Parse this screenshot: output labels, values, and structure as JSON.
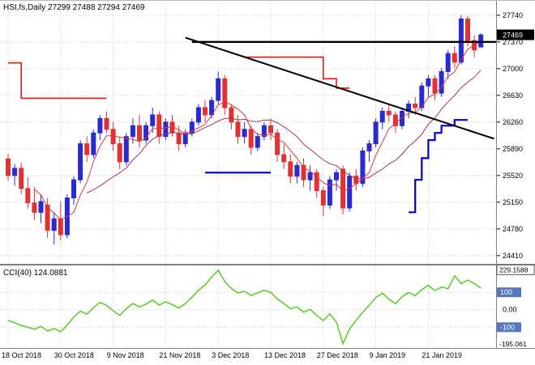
{
  "header": {
    "title_text": "HSI,fs,Daily 27299 27488 27294 27469",
    "symbol": "HSI,fs",
    "timeframe": "Daily",
    "ohlc": {
      "open": "27299",
      "high": "27488",
      "low": "27294",
      "close": "27469"
    }
  },
  "chart_data": {
    "type": "candlestick",
    "title": "HSI,fs,Daily",
    "ylim": [
      24330,
      27940
    ],
    "cci_ylim": [
      -210,
      240
    ],
    "grid": true,
    "price_ticks": [
      27740,
      27370,
      27000,
      26630,
      26260,
      25890,
      25520,
      25150,
      24780,
      24410
    ],
    "date_ticks": [
      {
        "index": 0,
        "label": "18 Oct 2018"
      },
      {
        "index": 8,
        "label": "30 Oct 2018"
      },
      {
        "index": 16,
        "label": "9 Nov 2018"
      },
      {
        "index": 24,
        "label": "21 Nov 2018"
      },
      {
        "index": 32,
        "label": "3 Dec 2018"
      },
      {
        "index": 40,
        "label": "13 Dec 2018"
      },
      {
        "index": 48,
        "label": "27 Dec 2018"
      },
      {
        "index": 56,
        "label": "9 Jan 2019"
      },
      {
        "index": 64,
        "label": "21 Jan 2019"
      }
    ],
    "candles": [
      [
        25750,
        25820,
        25450,
        25520
      ],
      [
        25520,
        25680,
        25380,
        25620
      ],
      [
        25620,
        25700,
        25260,
        25340
      ],
      [
        25340,
        25500,
        25060,
        25140
      ],
      [
        25140,
        25360,
        24900,
        25010
      ],
      [
        25010,
        25260,
        24860,
        25160
      ],
      [
        25110,
        25210,
        24660,
        24760
      ],
      [
        24760,
        25010,
        24560,
        24920
      ],
      [
        24920,
        25160,
        24620,
        24700
      ],
      [
        24700,
        25260,
        24650,
        25210
      ],
      [
        25210,
        25510,
        25110,
        25460
      ],
      [
        25460,
        26010,
        25410,
        25960
      ],
      [
        25960,
        26060,
        25710,
        25810
      ],
      [
        25810,
        26160,
        25760,
        26110
      ],
      [
        26110,
        26360,
        26010,
        26310
      ],
      [
        26310,
        26410,
        26110,
        26160
      ],
      [
        26160,
        26260,
        25860,
        25960
      ],
      [
        25960,
        26060,
        25610,
        25710
      ],
      [
        25710,
        26110,
        25660,
        26060
      ],
      [
        26060,
        26310,
        25960,
        26210
      ],
      [
        26210,
        26360,
        25910,
        26010
      ],
      [
        26010,
        26260,
        25960,
        26210
      ],
      [
        26210,
        26460,
        26110,
        26360
      ],
      [
        26360,
        26410,
        25960,
        26060
      ],
      [
        26060,
        26310,
        26010,
        26260
      ],
      [
        26260,
        26360,
        26060,
        26110
      ],
      [
        26110,
        26210,
        25860,
        25960
      ],
      [
        25960,
        26160,
        25910,
        26110
      ],
      [
        26110,
        26310,
        26060,
        26260
      ],
      [
        26260,
        26510,
        26210,
        26460
      ],
      [
        26460,
        26560,
        26260,
        26360
      ],
      [
        26360,
        26610,
        26310,
        26560
      ],
      [
        26560,
        26960,
        26510,
        26860
      ],
      [
        26860,
        26910,
        26360,
        26460
      ],
      [
        26460,
        26510,
        26160,
        26260
      ],
      [
        26260,
        26360,
        25960,
        26060
      ],
      [
        26060,
        26260,
        25960,
        26160
      ],
      [
        26160,
        26210,
        25810,
        25910
      ],
      [
        25910,
        26110,
        25860,
        26060
      ],
      [
        26060,
        26260,
        26010,
        26210
      ],
      [
        26210,
        26310,
        26010,
        26110
      ],
      [
        26110,
        26160,
        25710,
        25810
      ],
      [
        25810,
        25960,
        25610,
        25710
      ],
      [
        25710,
        25810,
        25410,
        25510
      ],
      [
        25510,
        25710,
        25410,
        25660
      ],
      [
        25660,
        25760,
        25360,
        25460
      ],
      [
        25460,
        25660,
        25310,
        25560
      ],
      [
        25560,
        25610,
        25210,
        25310
      ],
      [
        25310,
        25360,
        24960,
        25110
      ],
      [
        25110,
        25510,
        25060,
        25460
      ],
      [
        25460,
        25610,
        25310,
        25560
      ],
      [
        25610,
        25660,
        24980,
        25070
      ],
      [
        25070,
        25560,
        25020,
        25510
      ],
      [
        25510,
        25610,
        25310,
        25410
      ],
      [
        25410,
        25910,
        25360,
        25860
      ],
      [
        25860,
        26010,
        25710,
        25960
      ],
      [
        25960,
        26310,
        25910,
        26260
      ],
      [
        26260,
        26460,
        26160,
        26410
      ],
      [
        26410,
        26510,
        26260,
        26360
      ],
      [
        26360,
        26410,
        26110,
        26210
      ],
      [
        26210,
        26460,
        26160,
        26410
      ],
      [
        26410,
        26560,
        26310,
        26510
      ],
      [
        26510,
        26610,
        26360,
        26460
      ],
      [
        26460,
        26810,
        26410,
        26760
      ],
      [
        26760,
        26910,
        26610,
        26860
      ],
      [
        26860,
        26910,
        26560,
        26660
      ],
      [
        26660,
        27010,
        26610,
        26960
      ],
      [
        26960,
        27260,
        26860,
        27210
      ],
      [
        27210,
        27310,
        27010,
        27090
      ],
      [
        27090,
        27740,
        27060,
        27690
      ],
      [
        27690,
        27730,
        27310,
        27390
      ],
      [
        27390,
        27460,
        27160,
        27260
      ],
      [
        27299,
        27488,
        27294,
        27469
      ]
    ],
    "current": {
      "open": 27299,
      "high": 27488,
      "low": 27294,
      "close": 27469
    },
    "price_line": {
      "value": 27469,
      "label": "27469"
    },
    "hline": {
      "value": 27370,
      "from_index": 28
    },
    "trendline": {
      "from": [
        27,
        27430
      ],
      "to": [
        74,
        26030
      ]
    },
    "ma": {
      "fast_period": 5,
      "slow_period": 13,
      "fast_color": "#e03535",
      "slow_color": "#aa3355"
    },
    "step_lines": {
      "red": [
        [
          [
            0,
            27080
          ],
          [
            2,
            27080
          ],
          [
            2,
            26590
          ],
          [
            15,
            26590
          ]
        ],
        [
          [
            36,
            27160
          ],
          [
            48,
            27160
          ],
          [
            48,
            26860
          ],
          [
            50,
            26860
          ],
          [
            50,
            26730
          ],
          [
            52,
            26730
          ]
        ]
      ],
      "blue": [
        [
          [
            30,
            25560
          ],
          [
            40,
            25560
          ]
        ],
        [
          [
            61,
            25010
          ],
          [
            62,
            25010
          ],
          [
            62,
            25460
          ],
          [
            63,
            25460
          ],
          [
            63,
            25760
          ],
          [
            64,
            25760
          ],
          [
            64,
            26010
          ],
          [
            65,
            26010
          ],
          [
            65,
            26110
          ],
          [
            66,
            26110
          ],
          [
            66,
            26210
          ],
          [
            68,
            26210
          ],
          [
            68,
            26290
          ],
          [
            70,
            26290
          ]
        ]
      ]
    },
    "indicator": {
      "name": "CCI(40)",
      "value": "124.0881",
      "name_label": "CCI(40) 124.0881",
      "scale_max": "229.1588",
      "scale_max_value": 229.1588,
      "scale_min": "-195.061",
      "scale_min_value": -195.061,
      "levels": [
        100,
        0,
        -100
      ],
      "level_ticks": [
        {
          "label": "100",
          "value": 100,
          "boxed": true
        },
        {
          "label": "0.00",
          "value": 0,
          "boxed": false
        },
        {
          "label": "-100",
          "value": -100,
          "boxed": true
        }
      ],
      "values": [
        -60,
        -75,
        -90,
        -100,
        -112,
        -95,
        -122,
        -108,
        -126,
        -88,
        -42,
        -8,
        -25,
        12,
        42,
        25,
        -6,
        -32,
        6,
        36,
        16,
        32,
        56,
        26,
        46,
        30,
        10,
        36,
        72,
        112,
        142,
        188,
        226,
        162,
        122,
        96,
        106,
        82,
        96,
        112,
        100,
        62,
        36,
        6,
        16,
        -14,
        2,
        -32,
        -62,
        -24,
        -70,
        -195.061,
        -110,
        -60,
        -15,
        25,
        70,
        95,
        60,
        35,
        75,
        100,
        80,
        115,
        140,
        110,
        130,
        120,
        195,
        150,
        170,
        150,
        124.0881
      ]
    },
    "colors": {
      "bull": "#2a2ad0",
      "bear": "#e03232",
      "background": "#ffffff",
      "grid": "#cccccc",
      "step_blue": "#0000cc",
      "step_red": "#ee1111",
      "trend": "#000000",
      "cci": "#55cc22",
      "price_tag_bg": "#000000",
      "level_tag_bg": "#5577bb",
      "separator": "#808080"
    }
  }
}
